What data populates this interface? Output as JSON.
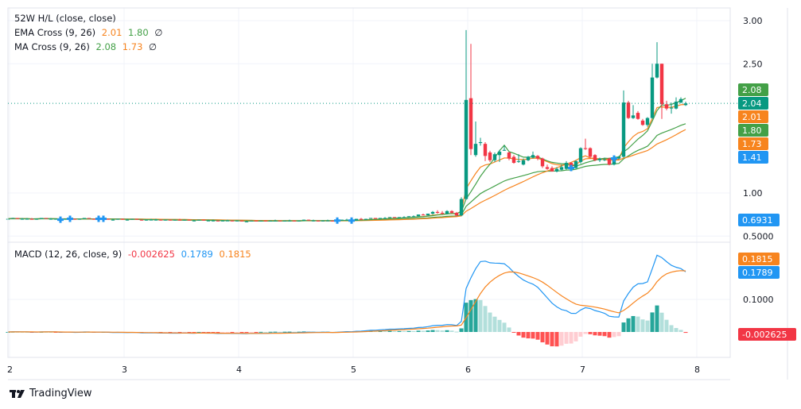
{
  "legend": {
    "hl": {
      "label": "52W H/L (close, close)"
    },
    "ema": {
      "label": "EMA Cross (9, 26)",
      "fast": "2.01",
      "slow": "1.80",
      "icon": "hidden-eye-icon"
    },
    "ma": {
      "label": "MA Cross (9, 26)",
      "fast": "2.08",
      "slow": "1.73",
      "icon": "hidden-eye-icon"
    },
    "macd": {
      "label": "MACD (12, 26, close, 9)",
      "hist": "-0.002625",
      "macd": "0.1789",
      "signal": "0.1815"
    }
  },
  "footer": {
    "brand": "TradingView"
  },
  "colors": {
    "up": "#089981",
    "down": "#f23645",
    "ema_fast": "#f7841e",
    "ema_slow": "#43a047",
    "ma_fast": "#43a047",
    "ma_slow": "#f7841e",
    "macd": "#2196f3",
    "signal": "#f7841e",
    "hist_up_strong": "#26a69a",
    "hist_up_weak": "#b2dfdb",
    "hist_down_strong": "#ff5252",
    "hist_down_weak": "#ffcdd2",
    "last_price": "#089981",
    "marker": "#2196f3"
  },
  "chart_data": [
    {
      "type": "candlestick",
      "title": "",
      "x_ticks": [
        "2",
        "3",
        "4",
        "5",
        "6",
        "7",
        "8"
      ],
      "y_ticks": [
        "3.00",
        "2.50",
        "1.00",
        "0.5000"
      ],
      "ylim": [
        0.45,
        3.15
      ],
      "grid": true,
      "price_labels": [
        {
          "value": "2.08",
          "color": "#43a047"
        },
        {
          "value": "2.04",
          "color": "#089981"
        },
        {
          "value": "2.01",
          "color": "#f7841e"
        },
        {
          "value": "1.80",
          "color": "#43a047"
        },
        {
          "value": "1.73",
          "color": "#f7841e"
        },
        {
          "value": "1.41",
          "color": "#2196f3"
        },
        {
          "value": "0.6931",
          "color": "#2196f3"
        }
      ],
      "last_price": 2.04,
      "marker_indices": [
        11,
        13,
        19,
        20,
        69,
        72,
        118,
        127
      ],
      "candles": [
        [
          0.7,
          0.71,
          0.69,
          0.7
        ],
        [
          0.7,
          0.71,
          0.7,
          0.71
        ],
        [
          0.71,
          0.71,
          0.7,
          0.7
        ],
        [
          0.7,
          0.71,
          0.69,
          0.7
        ],
        [
          0.7,
          0.71,
          0.7,
          0.7
        ],
        [
          0.7,
          0.71,
          0.69,
          0.69
        ],
        [
          0.69,
          0.7,
          0.69,
          0.7
        ],
        [
          0.7,
          0.71,
          0.7,
          0.71
        ],
        [
          0.71,
          0.71,
          0.7,
          0.7
        ],
        [
          0.7,
          0.71,
          0.69,
          0.7
        ],
        [
          0.7,
          0.7,
          0.69,
          0.7
        ],
        [
          0.7,
          0.71,
          0.69,
          0.69
        ],
        [
          0.69,
          0.7,
          0.69,
          0.7
        ],
        [
          0.7,
          0.71,
          0.69,
          0.7
        ],
        [
          0.7,
          0.7,
          0.69,
          0.69
        ],
        [
          0.69,
          0.7,
          0.69,
          0.7
        ],
        [
          0.7,
          0.71,
          0.7,
          0.71
        ],
        [
          0.71,
          0.71,
          0.7,
          0.7
        ],
        [
          0.7,
          0.7,
          0.69,
          0.69
        ],
        [
          0.69,
          0.7,
          0.69,
          0.7
        ],
        [
          0.7,
          0.71,
          0.69,
          0.7
        ],
        [
          0.7,
          0.7,
          0.69,
          0.69
        ],
        [
          0.69,
          0.7,
          0.68,
          0.69
        ],
        [
          0.69,
          0.7,
          0.69,
          0.7
        ],
        [
          0.7,
          0.7,
          0.69,
          0.69
        ],
        [
          0.69,
          0.7,
          0.68,
          0.69
        ],
        [
          0.69,
          0.7,
          0.69,
          0.7
        ],
        [
          0.7,
          0.7,
          0.69,
          0.69
        ],
        [
          0.69,
          0.69,
          0.68,
          0.68
        ],
        [
          0.68,
          0.69,
          0.68,
          0.69
        ],
        [
          0.69,
          0.7,
          0.69,
          0.69
        ],
        [
          0.69,
          0.7,
          0.68,
          0.69
        ],
        [
          0.69,
          0.69,
          0.68,
          0.68
        ],
        [
          0.68,
          0.69,
          0.68,
          0.69
        ],
        [
          0.69,
          0.69,
          0.68,
          0.68
        ],
        [
          0.68,
          0.69,
          0.68,
          0.69
        ],
        [
          0.69,
          0.7,
          0.68,
          0.68
        ],
        [
          0.68,
          0.69,
          0.68,
          0.69
        ],
        [
          0.69,
          0.69,
          0.68,
          0.68
        ],
        [
          0.68,
          0.69,
          0.67,
          0.68
        ],
        [
          0.68,
          0.69,
          0.68,
          0.69
        ],
        [
          0.69,
          0.69,
          0.68,
          0.68
        ],
        [
          0.68,
          0.69,
          0.68,
          0.68
        ],
        [
          0.68,
          0.69,
          0.67,
          0.68
        ],
        [
          0.68,
          0.68,
          0.67,
          0.67
        ],
        [
          0.67,
          0.68,
          0.67,
          0.68
        ],
        [
          0.68,
          0.69,
          0.68,
          0.68
        ],
        [
          0.68,
          0.68,
          0.67,
          0.67
        ],
        [
          0.67,
          0.68,
          0.67,
          0.68
        ],
        [
          0.68,
          0.68,
          0.67,
          0.67
        ],
        [
          0.67,
          0.68,
          0.66,
          0.67
        ],
        [
          0.67,
          0.68,
          0.67,
          0.68
        ],
        [
          0.68,
          0.68,
          0.67,
          0.67
        ],
        [
          0.67,
          0.68,
          0.67,
          0.68
        ],
        [
          0.68,
          0.68,
          0.67,
          0.67
        ],
        [
          0.67,
          0.68,
          0.67,
          0.68
        ],
        [
          0.68,
          0.69,
          0.68,
          0.68
        ],
        [
          0.68,
          0.68,
          0.67,
          0.67
        ],
        [
          0.67,
          0.68,
          0.67,
          0.68
        ],
        [
          0.68,
          0.69,
          0.67,
          0.68
        ],
        [
          0.68,
          0.68,
          0.67,
          0.67
        ],
        [
          0.67,
          0.68,
          0.67,
          0.68
        ],
        [
          0.68,
          0.69,
          0.68,
          0.69
        ],
        [
          0.69,
          0.69,
          0.68,
          0.68
        ],
        [
          0.68,
          0.69,
          0.67,
          0.68
        ],
        [
          0.68,
          0.68,
          0.67,
          0.67
        ],
        [
          0.67,
          0.68,
          0.67,
          0.68
        ],
        [
          0.68,
          0.69,
          0.68,
          0.68
        ],
        [
          0.68,
          0.68,
          0.67,
          0.67
        ],
        [
          0.67,
          0.68,
          0.66,
          0.68
        ],
        [
          0.68,
          0.69,
          0.68,
          0.69
        ],
        [
          0.69,
          0.7,
          0.68,
          0.69
        ],
        [
          0.69,
          0.69,
          0.67,
          0.68
        ],
        [
          0.68,
          0.7,
          0.68,
          0.7
        ],
        [
          0.7,
          0.71,
          0.69,
          0.69
        ],
        [
          0.69,
          0.7,
          0.69,
          0.7
        ],
        [
          0.7,
          0.71,
          0.7,
          0.71
        ],
        [
          0.71,
          0.71,
          0.7,
          0.7
        ],
        [
          0.7,
          0.71,
          0.7,
          0.71
        ],
        [
          0.71,
          0.72,
          0.7,
          0.71
        ],
        [
          0.71,
          0.72,
          0.71,
          0.72
        ],
        [
          0.72,
          0.72,
          0.71,
          0.71
        ],
        [
          0.71,
          0.72,
          0.71,
          0.72
        ],
        [
          0.72,
          0.73,
          0.71,
          0.72
        ],
        [
          0.72,
          0.73,
          0.72,
          0.73
        ],
        [
          0.73,
          0.74,
          0.72,
          0.73
        ],
        [
          0.73,
          0.75,
          0.73,
          0.75
        ],
        [
          0.75,
          0.76,
          0.74,
          0.74
        ],
        [
          0.74,
          0.76,
          0.74,
          0.76
        ],
        [
          0.76,
          0.79,
          0.75,
          0.78
        ],
        [
          0.78,
          0.8,
          0.76,
          0.77
        ],
        [
          0.77,
          0.79,
          0.75,
          0.76
        ],
        [
          0.76,
          0.8,
          0.75,
          0.79
        ],
        [
          0.79,
          0.8,
          0.76,
          0.77
        ],
        [
          0.77,
          0.78,
          0.73,
          0.74
        ],
        [
          0.74,
          0.95,
          0.73,
          0.93
        ],
        [
          0.93,
          2.89,
          0.92,
          2.08
        ],
        [
          2.1,
          2.73,
          1.44,
          1.51
        ],
        [
          1.44,
          1.83,
          1.42,
          1.57
        ],
        [
          1.58,
          1.64,
          1.55,
          1.59
        ],
        [
          1.57,
          1.59,
          1.37,
          1.43
        ],
        [
          1.47,
          1.49,
          1.36,
          1.38
        ],
        [
          1.38,
          1.47,
          1.36,
          1.45
        ],
        [
          1.44,
          1.5,
          1.36,
          1.48
        ],
        [
          1.5,
          1.55,
          1.49,
          1.5
        ],
        [
          1.47,
          1.48,
          1.38,
          1.4
        ],
        [
          1.42,
          1.44,
          1.34,
          1.35
        ],
        [
          1.37,
          1.45,
          1.35,
          1.37
        ],
        [
          1.33,
          1.4,
          1.32,
          1.38
        ],
        [
          1.38,
          1.43,
          1.37,
          1.42
        ],
        [
          1.41,
          1.48,
          1.4,
          1.44
        ],
        [
          1.43,
          1.44,
          1.38,
          1.4
        ],
        [
          1.4,
          1.41,
          1.29,
          1.31
        ],
        [
          1.3,
          1.33,
          1.27,
          1.28
        ],
        [
          1.29,
          1.31,
          1.25,
          1.25
        ],
        [
          1.25,
          1.3,
          1.24,
          1.28
        ],
        [
          1.27,
          1.33,
          1.26,
          1.3
        ],
        [
          1.28,
          1.37,
          1.27,
          1.35
        ],
        [
          1.35,
          1.36,
          1.28,
          1.29
        ],
        [
          1.29,
          1.38,
          1.28,
          1.37
        ],
        [
          1.36,
          1.53,
          1.34,
          1.52
        ],
        [
          1.52,
          1.63,
          1.5,
          1.51
        ],
        [
          1.52,
          1.53,
          1.4,
          1.42
        ],
        [
          1.44,
          1.45,
          1.37,
          1.38
        ],
        [
          1.38,
          1.41,
          1.36,
          1.4
        ],
        [
          1.39,
          1.41,
          1.37,
          1.39
        ],
        [
          1.4,
          1.41,
          1.32,
          1.33
        ],
        [
          1.33,
          1.42,
          1.32,
          1.4
        ],
        [
          1.4,
          1.43,
          1.39,
          1.42
        ],
        [
          1.42,
          2.19,
          1.41,
          2.05
        ],
        [
          2.05,
          2.07,
          1.86,
          1.87
        ],
        [
          1.87,
          2.02,
          1.86,
          1.9
        ],
        [
          1.93,
          1.95,
          1.85,
          1.86
        ],
        [
          1.84,
          1.86,
          1.78,
          1.79
        ],
        [
          1.79,
          1.88,
          1.77,
          1.87
        ],
        [
          1.87,
          2.5,
          1.86,
          2.34
        ],
        [
          2.34,
          2.75,
          2.33,
          2.5
        ],
        [
          2.5,
          2.5,
          1.86,
          2.03
        ],
        [
          2.03,
          2.07,
          1.96,
          1.98
        ],
        [
          1.99,
          2.05,
          1.92,
          1.99
        ],
        [
          1.98,
          2.11,
          1.97,
          2.06
        ],
        [
          2.05,
          2.11,
          2.04,
          2.09
        ],
        [
          2.02,
          2.06,
          2.01,
          2.04
        ]
      ]
    },
    {
      "type": "bar+line",
      "title": "MACD (12, 26, close, 9)",
      "y_ticks": [
        "0.1000"
      ],
      "ylim": [
        -0.09,
        0.27
      ],
      "value_labels": [
        {
          "value": "0.1815",
          "color": "#f7841e"
        },
        {
          "value": "0.1789",
          "color": "#2196f3"
        },
        {
          "value": "-0.002625",
          "color": "#f23645"
        }
      ]
    }
  ]
}
